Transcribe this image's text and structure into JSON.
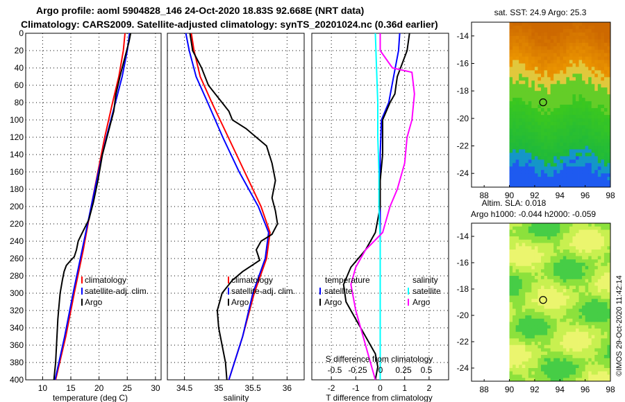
{
  "header": {
    "line1": "Argo profile: aoml 5904828_146 24-Oct-2020 18.83S 92.668E (NRT data)",
    "line2": "Climatology: CARS2009. Satellite-adjusted climatology: synTS_20201024.nc (0.36d earlier)"
  },
  "credit": "©IMOS 29-Oct-2020 11:42:14",
  "colors": {
    "climatology": "#ff0000",
    "satellite": "#0000ff",
    "argo": "#000000",
    "sat_t": "#00ffff",
    "argo_s": "#ff00ff"
  },
  "chart_data": [
    {
      "type": "line",
      "name": "temperature-profile",
      "xlabel": "temperature (deg C)",
      "xlim": [
        7,
        31
      ],
      "ylim": [
        400,
        0
      ],
      "xticks": [
        10,
        15,
        20,
        25,
        30
      ],
      "yticks": [
        0,
        20,
        40,
        60,
        80,
        100,
        120,
        140,
        160,
        180,
        200,
        220,
        240,
        260,
        280,
        300,
        320,
        340,
        360,
        380,
        400
      ],
      "legend": [
        "climatology",
        "satellite-adj. clim.",
        "Argo"
      ],
      "series": [
        {
          "name": "climatology",
          "color": "#ff0000",
          "points": [
            [
              24.6,
              0
            ],
            [
              24.3,
              20
            ],
            [
              23.5,
              50
            ],
            [
              22.4,
              80
            ],
            [
              21.0,
              120
            ],
            [
              19.8,
              160
            ],
            [
              18.6,
              200
            ],
            [
              17.2,
              250
            ],
            [
              15.6,
              300
            ],
            [
              14.1,
              350
            ],
            [
              12.3,
              400
            ]
          ]
        },
        {
          "name": "satellite-adj. clim.",
          "color": "#0000ff",
          "points": [
            [
              25.4,
              0
            ],
            [
              25.0,
              20
            ],
            [
              24.1,
              50
            ],
            [
              22.9,
              80
            ],
            [
              21.3,
              120
            ],
            [
              19.9,
              160
            ],
            [
              18.6,
              200
            ],
            [
              17.0,
              250
            ],
            [
              15.4,
              300
            ],
            [
              13.9,
              350
            ],
            [
              12.2,
              400
            ]
          ]
        },
        {
          "name": "Argo",
          "color": "#000000",
          "points": [
            [
              25.6,
              0
            ],
            [
              25.3,
              10
            ],
            [
              24.9,
              20
            ],
            [
              23.7,
              50
            ],
            [
              23.0,
              70
            ],
            [
              22.6,
              90
            ],
            [
              21.4,
              120
            ],
            [
              20.6,
              140
            ],
            [
              19.8,
              170
            ],
            [
              19.0,
              195
            ],
            [
              18.2,
              215
            ],
            [
              16.9,
              232
            ],
            [
              16.3,
              240
            ],
            [
              16.0,
              250
            ],
            [
              15.6,
              258
            ],
            [
              15.0,
              262
            ],
            [
              14.2,
              268
            ],
            [
              13.8,
              275
            ],
            [
              13.5,
              285
            ],
            [
              13.1,
              300
            ],
            [
              12.9,
              315
            ],
            [
              12.7,
              330
            ],
            [
              12.5,
              355
            ],
            [
              12.3,
              380
            ],
            [
              12.0,
              400
            ]
          ]
        }
      ]
    },
    {
      "type": "line",
      "name": "salinity-profile",
      "xlabel": "salinity",
      "xlim": [
        34.25,
        36.25
      ],
      "ylim": [
        400,
        0
      ],
      "xticks": [
        34.5,
        35,
        35.5,
        36
      ],
      "legend": [
        "climatology",
        "satellite-adj. clim.",
        "Argo"
      ],
      "series": [
        {
          "name": "climatology",
          "color": "#ff0000",
          "points": [
            [
              34.6,
              0
            ],
            [
              34.64,
              20
            ],
            [
              34.73,
              50
            ],
            [
              34.9,
              80
            ],
            [
              35.14,
              120
            ],
            [
              35.38,
              160
            ],
            [
              35.62,
              200
            ],
            [
              35.75,
              230
            ],
            [
              35.7,
              260
            ],
            [
              35.52,
              300
            ],
            [
              35.35,
              350
            ],
            [
              35.15,
              400
            ]
          ]
        },
        {
          "name": "satellite-adj. clim.",
          "color": "#0000ff",
          "points": [
            [
              34.52,
              0
            ],
            [
              34.57,
              20
            ],
            [
              34.67,
              50
            ],
            [
              34.84,
              80
            ],
            [
              35.06,
              120
            ],
            [
              35.3,
              160
            ],
            [
              35.58,
              200
            ],
            [
              35.73,
              230
            ],
            [
              35.68,
              260
            ],
            [
              35.5,
              300
            ],
            [
              35.35,
              350
            ],
            [
              35.15,
              400
            ]
          ]
        },
        {
          "name": "Argo",
          "color": "#000000",
          "points": [
            [
              34.58,
              0
            ],
            [
              34.62,
              20
            ],
            [
              34.75,
              40
            ],
            [
              34.85,
              60
            ],
            [
              35.05,
              80
            ],
            [
              35.15,
              90
            ],
            [
              35.2,
              100
            ],
            [
              35.4,
              110
            ],
            [
              35.55,
              120
            ],
            [
              35.7,
              130
            ],
            [
              35.78,
              150
            ],
            [
              35.83,
              170
            ],
            [
              35.78,
              190
            ],
            [
              35.83,
              205
            ],
            [
              35.86,
              220
            ],
            [
              35.78,
              232
            ],
            [
              35.62,
              240
            ],
            [
              35.55,
              250
            ],
            [
              35.6,
              262
            ],
            [
              35.35,
              275
            ],
            [
              35.2,
              285
            ],
            [
              35.05,
              300
            ],
            [
              34.98,
              320
            ],
            [
              35.0,
              340
            ],
            [
              35.05,
              360
            ],
            [
              35.1,
              380
            ],
            [
              35.12,
              400
            ]
          ]
        }
      ]
    },
    {
      "type": "line",
      "name": "difference-profile",
      "xlabel": "T difference from climatology",
      "xlabel_top": "S difference from climatology",
      "xlim": [
        -2.8,
        2.8
      ],
      "ylim": [
        400,
        0
      ],
      "xticks": [
        -2,
        -1,
        0,
        1,
        2
      ],
      "xticks_top": [
        "-0.5",
        "-0.25",
        "0",
        "0.25",
        "0.5"
      ],
      "legend_groups": [
        {
          "title": "temperature",
          "items": [
            "satellite",
            "Argo"
          ]
        },
        {
          "title": "salinity",
          "items": [
            "satellite",
            "Argo"
          ]
        }
      ],
      "series": [
        {
          "name": "temperature satellite",
          "color": "#0000ff",
          "points": [
            [
              0.8,
              0
            ],
            [
              0.75,
              20
            ],
            [
              0.55,
              50
            ],
            [
              0.35,
              80
            ],
            [
              0.05,
              100
            ],
            [
              0.0,
              140
            ],
            [
              0.0,
              200
            ],
            [
              0.0,
              250
            ],
            [
              0.0,
              300
            ],
            [
              0.0,
              350
            ],
            [
              0.0,
              400
            ]
          ]
        },
        {
          "name": "temperature Argo",
          "color": "#000000",
          "points": [
            [
              1.2,
              0
            ],
            [
              1.1,
              20
            ],
            [
              0.7,
              50
            ],
            [
              0.6,
              70
            ],
            [
              0.4,
              80
            ],
            [
              0.1,
              100
            ],
            [
              0.1,
              140
            ],
            [
              0.0,
              170
            ],
            [
              0.0,
              200
            ],
            [
              -0.2,
              230
            ],
            [
              -0.6,
              250
            ],
            [
              -1.2,
              270
            ],
            [
              -1.5,
              290
            ],
            [
              -1.4,
              310
            ],
            [
              -1.0,
              330
            ],
            [
              -0.6,
              350
            ],
            [
              -0.2,
              370
            ],
            [
              -0.1,
              385
            ],
            [
              -0.2,
              400
            ]
          ]
        },
        {
          "name": "salinity satellite",
          "color": "#00ffff",
          "points": [
            [
              -0.2,
              0
            ],
            [
              -0.15,
              40
            ],
            [
              -0.1,
              80
            ],
            [
              -0.1,
              120
            ],
            [
              -0.05,
              160
            ],
            [
              -0.05,
              200
            ],
            [
              0.0,
              240
            ],
            [
              0.0,
              280
            ],
            [
              0.0,
              320
            ],
            [
              0.0,
              360
            ],
            [
              0.0,
              400
            ]
          ]
        },
        {
          "name": "salinity Argo",
          "color": "#ff00ff",
          "points": [
            [
              0.0,
              0
            ],
            [
              0.0,
              20
            ],
            [
              0.5,
              40
            ],
            [
              1.3,
              45
            ],
            [
              1.4,
              70
            ],
            [
              1.3,
              100
            ],
            [
              1.1,
              120
            ],
            [
              1.0,
              150
            ],
            [
              0.7,
              180
            ],
            [
              0.4,
              200
            ],
            [
              0.1,
              230
            ],
            [
              -0.6,
              250
            ],
            [
              -1.0,
              270
            ],
            [
              -1.2,
              290
            ],
            [
              -1.0,
              320
            ],
            [
              -0.7,
              350
            ],
            [
              -0.4,
              380
            ],
            [
              -0.2,
              400
            ]
          ]
        }
      ]
    },
    {
      "type": "heatmap",
      "name": "sst-map",
      "title": "sat. SST: 24.9 Argo: 25.3",
      "xlim": [
        87,
        98
      ],
      "ylim": [
        -25,
        -13
      ],
      "xticks": [
        88,
        90,
        92,
        94,
        96,
        98
      ],
      "yticks": [
        -14,
        -16,
        -18,
        -20,
        -22,
        -24
      ],
      "marker": {
        "lon": 92.668,
        "lat": -18.83
      }
    },
    {
      "type": "heatmap",
      "name": "sla-map",
      "title": "Altim. SLA: 0.018",
      "subtitle": "Argo h1000: -0.044 h2000: -0.059",
      "xlim": [
        87,
        98
      ],
      "ylim": [
        -25,
        -13
      ],
      "xticks": [
        88,
        90,
        92,
        94,
        96,
        98
      ],
      "yticks": [
        -14,
        -16,
        -18,
        -20,
        -22,
        -24
      ],
      "marker": {
        "lon": 92.668,
        "lat": -18.83
      }
    }
  ]
}
